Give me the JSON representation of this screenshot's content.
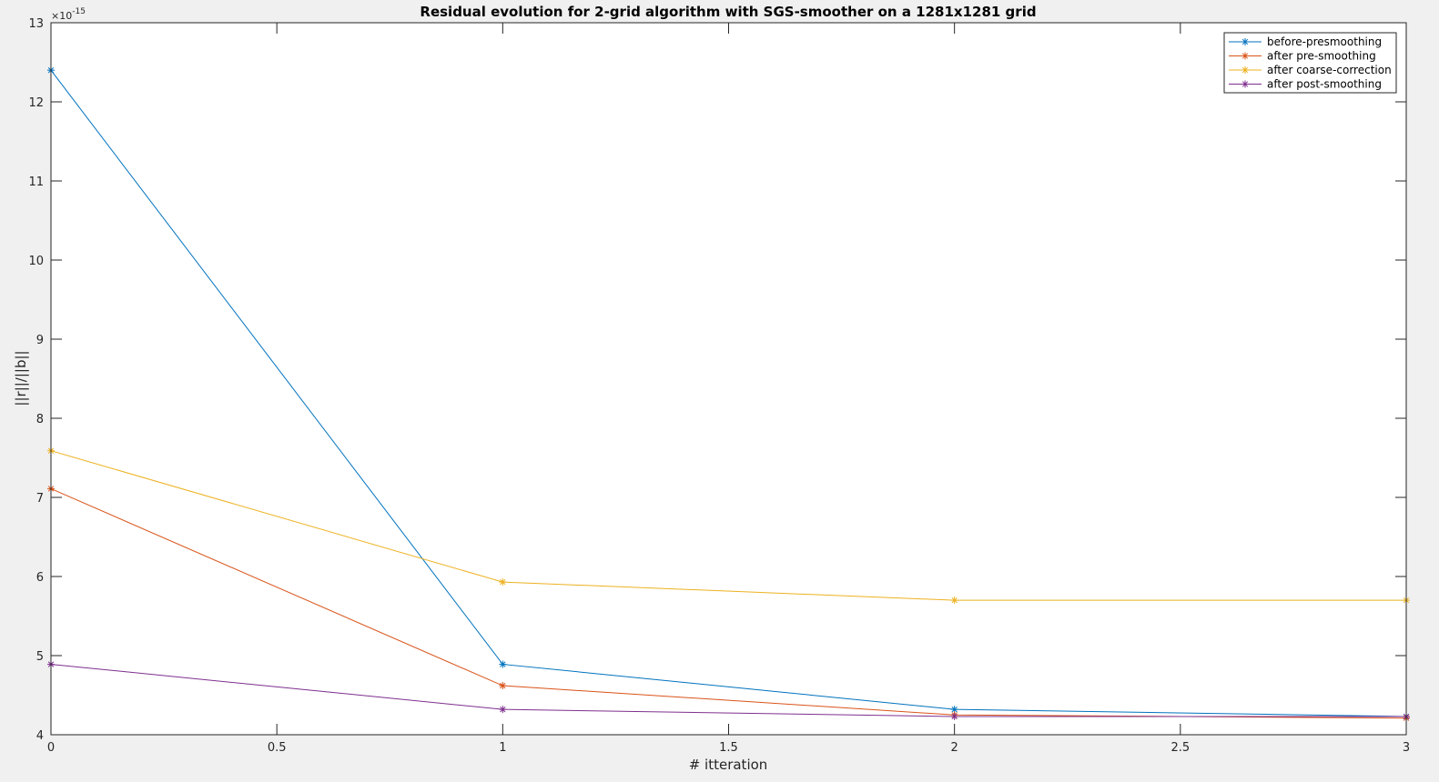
{
  "chart_data": {
    "type": "line",
    "title": "Residual evolution for 2-grid algorithm with SGS-smoother on a 1281x1281 grid",
    "xlabel": "# itteration",
    "ylabel": "||r||/||b||",
    "y_exponent_base": "×10",
    "y_exponent_power": "-15",
    "xlim": [
      0,
      3
    ],
    "ylim": [
      4,
      13
    ],
    "xticks": [
      0,
      0.5,
      1,
      1.5,
      2,
      2.5,
      3
    ],
    "xtick_labels": [
      "0",
      "0.5",
      "1",
      "1.5",
      "2",
      "2.5",
      "3"
    ],
    "yticks": [
      4,
      5,
      6,
      7,
      8,
      9,
      10,
      11,
      12,
      13
    ],
    "ytick_labels": [
      "4",
      "5",
      "6",
      "7",
      "8",
      "9",
      "10",
      "11",
      "12",
      "13"
    ],
    "grid": false,
    "legend_position": "top-right",
    "marker": "asterisk",
    "x": [
      0,
      1,
      2,
      3
    ],
    "series": [
      {
        "name": "before-presmoothing",
        "color": "#0072BD",
        "values": [
          12.4,
          4.89,
          4.32,
          4.23
        ]
      },
      {
        "name": "after pre-smoothing",
        "color": "#D95319",
        "values": [
          7.11,
          4.62,
          4.25,
          4.21
        ]
      },
      {
        "name": "after coarse-correction",
        "color": "#EDB120",
        "values": [
          7.59,
          5.93,
          5.7,
          5.7
        ]
      },
      {
        "name": "after post-smoothing",
        "color": "#7E2F8E",
        "values": [
          4.89,
          4.32,
          4.23,
          4.23
        ]
      }
    ]
  }
}
